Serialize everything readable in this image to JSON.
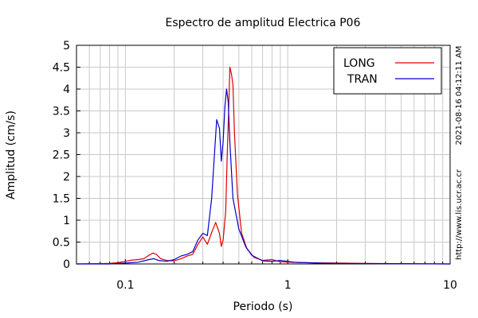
{
  "chart_data": {
    "type": "line",
    "title": "Espectro de amplitud Electrica P06",
    "xlabel": "Periodo (s)",
    "ylabel": "Amplitud (cm/s)",
    "xscale": "log",
    "xlim": [
      0.05,
      10
    ],
    "ylim": [
      0,
      5
    ],
    "grid": true,
    "legend_position": "top-right",
    "x_tick_labels": [
      "0.1",
      "1",
      "10"
    ],
    "x_ticks": [
      0.1,
      1,
      10
    ],
    "y_tick_labels": [
      "0",
      "0.5",
      "1",
      "1.5",
      "2",
      "2.5",
      "3",
      "3.5",
      "4",
      "4.5",
      "5"
    ],
    "y_ticks": [
      0,
      0.5,
      1,
      1.5,
      2,
      2.5,
      3,
      3.5,
      4,
      4.5,
      5
    ],
    "side_text_top": "2021-08-16 04:12:11 AM",
    "side_text_bottom": "http://www.lis.ucr.ac.cr",
    "series": [
      {
        "name": "LONG",
        "color": "#dd0000",
        "points": [
          [
            0.05,
            0.0
          ],
          [
            0.08,
            0.01
          ],
          [
            0.09,
            0.03
          ],
          [
            0.1,
            0.06
          ],
          [
            0.11,
            0.09
          ],
          [
            0.12,
            0.1
          ],
          [
            0.13,
            0.12
          ],
          [
            0.14,
            0.2
          ],
          [
            0.148,
            0.25
          ],
          [
            0.155,
            0.22
          ],
          [
            0.165,
            0.12
          ],
          [
            0.18,
            0.08
          ],
          [
            0.2,
            0.07
          ],
          [
            0.22,
            0.12
          ],
          [
            0.24,
            0.18
          ],
          [
            0.26,
            0.22
          ],
          [
            0.28,
            0.45
          ],
          [
            0.3,
            0.62
          ],
          [
            0.32,
            0.45
          ],
          [
            0.34,
            0.72
          ],
          [
            0.36,
            0.95
          ],
          [
            0.38,
            0.7
          ],
          [
            0.39,
            0.4
          ],
          [
            0.4,
            0.55
          ],
          [
            0.415,
            1.2
          ],
          [
            0.425,
            2.6
          ],
          [
            0.435,
            3.8
          ],
          [
            0.44,
            4.5
          ],
          [
            0.45,
            4.35
          ],
          [
            0.46,
            4.1
          ],
          [
            0.47,
            3.0
          ],
          [
            0.49,
            1.6
          ],
          [
            0.52,
            0.7
          ],
          [
            0.56,
            0.35
          ],
          [
            0.62,
            0.15
          ],
          [
            0.7,
            0.08
          ],
          [
            0.8,
            0.1
          ],
          [
            0.9,
            0.05
          ],
          [
            1.2,
            0.03
          ],
          [
            2.0,
            0.02
          ],
          [
            3.0,
            0.01
          ],
          [
            10.0,
            0.0
          ]
        ]
      },
      {
        "name": "TRAN",
        "color": "#0000cc",
        "points": [
          [
            0.05,
            0.0
          ],
          [
            0.08,
            0.0
          ],
          [
            0.1,
            0.02
          ],
          [
            0.12,
            0.04
          ],
          [
            0.14,
            0.1
          ],
          [
            0.15,
            0.12
          ],
          [
            0.16,
            0.08
          ],
          [
            0.18,
            0.06
          ],
          [
            0.2,
            0.1
          ],
          [
            0.22,
            0.18
          ],
          [
            0.24,
            0.22
          ],
          [
            0.26,
            0.28
          ],
          [
            0.28,
            0.55
          ],
          [
            0.3,
            0.7
          ],
          [
            0.32,
            0.65
          ],
          [
            0.34,
            1.5
          ],
          [
            0.355,
            2.6
          ],
          [
            0.365,
            3.3
          ],
          [
            0.38,
            3.1
          ],
          [
            0.39,
            2.35
          ],
          [
            0.4,
            2.8
          ],
          [
            0.41,
            3.6
          ],
          [
            0.42,
            4.0
          ],
          [
            0.43,
            3.7
          ],
          [
            0.44,
            2.8
          ],
          [
            0.46,
            1.5
          ],
          [
            0.5,
            0.8
          ],
          [
            0.55,
            0.4
          ],
          [
            0.6,
            0.2
          ],
          [
            0.7,
            0.07
          ],
          [
            0.8,
            0.06
          ],
          [
            0.9,
            0.08
          ],
          [
            1.1,
            0.04
          ],
          [
            1.5,
            0.02
          ],
          [
            2.0,
            0.01
          ],
          [
            10.0,
            0.0
          ]
        ]
      }
    ]
  }
}
